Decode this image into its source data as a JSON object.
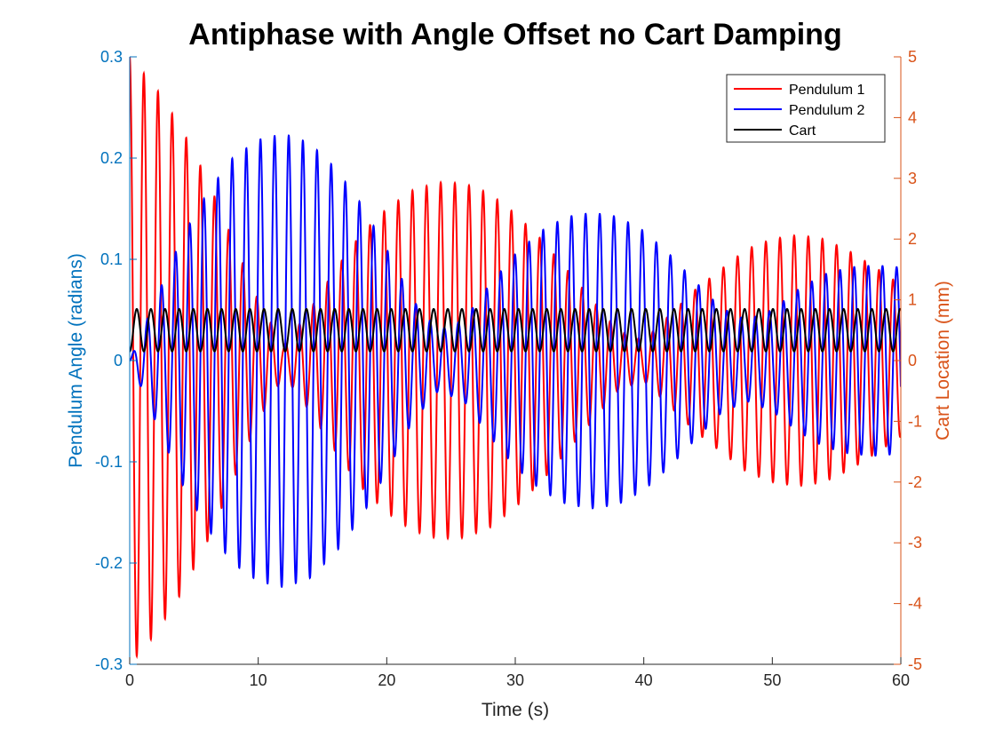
{
  "chart_data": {
    "type": "line",
    "title": "Antiphase with Angle Offset no Cart Damping",
    "xlabel": "Time (s)",
    "ylabel_left": "Pendulum Angle (radians)",
    "ylabel_right": "Cart Location (mm)",
    "xlim": [
      0,
      60
    ],
    "ylim_left": [
      -0.3,
      0.3
    ],
    "ylim_right": [
      -5,
      5
    ],
    "xticks": [
      0,
      10,
      20,
      30,
      40,
      50,
      60
    ],
    "yticks_left": [
      -0.3,
      -0.2,
      -0.1,
      0,
      0.1,
      0.2,
      0.3
    ],
    "yticks_left_labels": [
      "-0.3",
      "-0.2",
      "-0.1",
      "0",
      "0.1",
      "0.2",
      "0.3"
    ],
    "yticks_right": [
      -5,
      -4,
      -3,
      -2,
      -1,
      0,
      1,
      2,
      3,
      4,
      5
    ],
    "grid": false,
    "legend": {
      "position": "top-right",
      "entries": [
        "Pendulum 1",
        "Pendulum 2",
        "Cart"
      ]
    },
    "colors": {
      "pendulum1": "#ff0000",
      "pendulum2": "#0000ff",
      "cart": "#000000",
      "left_axis": "#0072bd",
      "right_axis": "#d95319"
    },
    "oscillation_period_s": 1.1,
    "series": [
      {
        "name": "Pendulum 1",
        "axis": "left",
        "color": "#ff0000",
        "amplitude_envelope": {
          "t": [
            0,
            2,
            4,
            6,
            8,
            10,
            12,
            14,
            16,
            18,
            20,
            22,
            24,
            26,
            28,
            30,
            32,
            34,
            36,
            38,
            40,
            42,
            44,
            46,
            48,
            50,
            52,
            54,
            56,
            58,
            60
          ],
          "amp": [
            0.3,
            0.27,
            0.23,
            0.18,
            0.12,
            0.06,
            0.015,
            0.05,
            0.09,
            0.125,
            0.15,
            0.168,
            0.176,
            0.175,
            0.165,
            0.145,
            0.12,
            0.09,
            0.06,
            0.03,
            0.02,
            0.045,
            0.07,
            0.09,
            0.11,
            0.12,
            0.124,
            0.12,
            0.108,
            0.092,
            0.075
          ]
        }
      },
      {
        "name": "Pendulum 2",
        "axis": "left",
        "color": "#0000ff",
        "amplitude_envelope": {
          "t": [
            0,
            2,
            4,
            6,
            8,
            10,
            12,
            14,
            16,
            18,
            20,
            22,
            24,
            26,
            28,
            30,
            32,
            34,
            36,
            38,
            40,
            42,
            44,
            46,
            48,
            50,
            52,
            54,
            56,
            58,
            60
          ],
          "amp": [
            0.0,
            0.06,
            0.12,
            0.165,
            0.2,
            0.218,
            0.224,
            0.215,
            0.19,
            0.155,
            0.11,
            0.06,
            0.03,
            0.04,
            0.075,
            0.105,
            0.128,
            0.142,
            0.146,
            0.142,
            0.128,
            0.105,
            0.078,
            0.052,
            0.04,
            0.05,
            0.07,
            0.085,
            0.092,
            0.094,
            0.092
          ]
        }
      },
      {
        "name": "Cart",
        "axis": "right",
        "color": "#000000",
        "mean_mm": 0.5,
        "amplitude_mm": 0.35
      }
    ]
  }
}
